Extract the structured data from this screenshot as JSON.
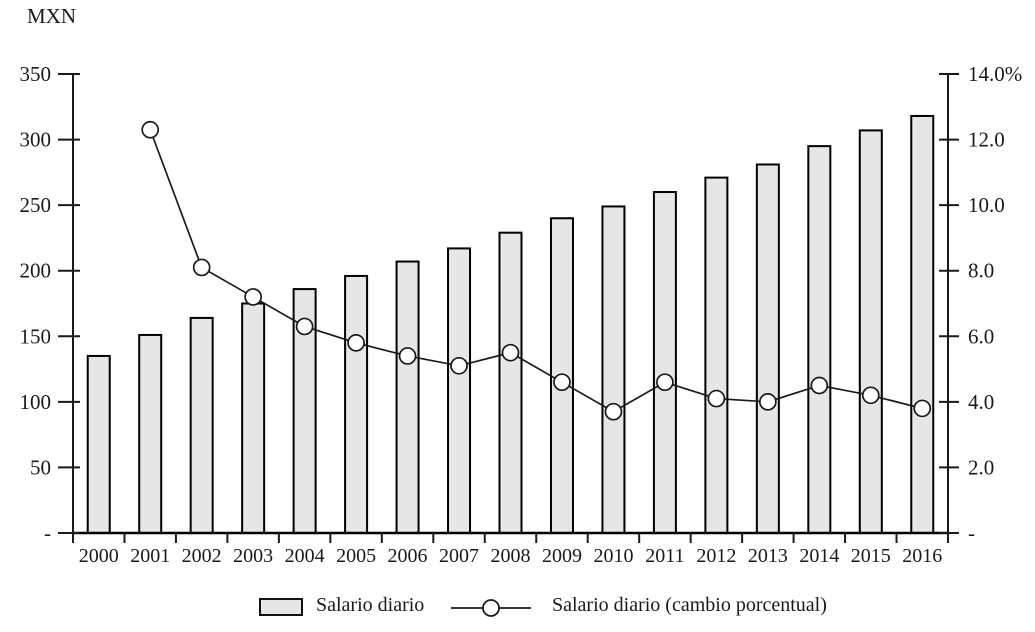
{
  "chart_data": {
    "type": "combo",
    "title": "",
    "left_axis_unit": "MXN",
    "left_axis": {
      "min": 0,
      "max": 350,
      "tick_step": 50,
      "tick_labels": [
        "-",
        "50",
        "100",
        "150",
        "200",
        "250",
        "300",
        "350"
      ]
    },
    "right_axis": {
      "min": 0,
      "max": 14,
      "tick_step": 2,
      "tick_labels": [
        "-",
        "2.0",
        "4.0",
        "6.0",
        "8.0",
        "10.0",
        "12.0",
        "14.0%"
      ]
    },
    "categories": [
      "2000",
      "2001",
      "2002",
      "2003",
      "2004",
      "2005",
      "2006",
      "2007",
      "2008",
      "2009",
      "2010",
      "2011",
      "2012",
      "2013",
      "2014",
      "2015",
      "2016"
    ],
    "series": [
      {
        "name": "Salario diario",
        "type": "bar",
        "axis": "left",
        "values": [
          135,
          151,
          164,
          175,
          186,
          196,
          207,
          217,
          229,
          240,
          249,
          260,
          271,
          281,
          295,
          307,
          318
        ]
      },
      {
        "name": "Salario diario (cambio porcentual)",
        "type": "line",
        "axis": "right",
        "values": [
          null,
          12.3,
          8.1,
          7.2,
          6.3,
          5.8,
          5.4,
          5.1,
          5.5,
          4.6,
          3.7,
          4.6,
          4.1,
          4.0,
          4.5,
          4.2,
          3.8
        ]
      }
    ],
    "legend": {
      "position": "bottom"
    },
    "colors": {
      "bar_fill": "#e6e6e6",
      "bar_border": "#000000",
      "line": "#1a1a1a",
      "marker_fill": "#ffffff",
      "text": "#1a1a1a"
    },
    "grid": false
  }
}
